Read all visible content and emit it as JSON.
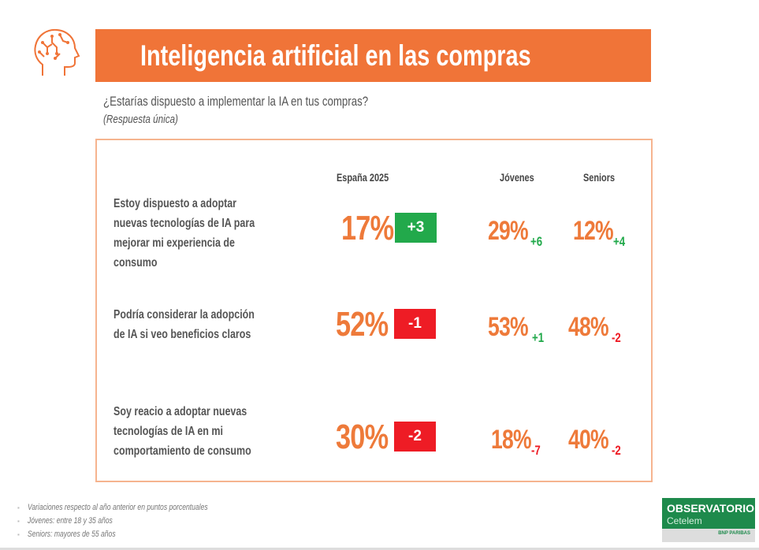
{
  "header": {
    "title": "Inteligencia artificial en las compras",
    "icon": "brain-head-icon"
  },
  "question": "¿Estarías dispuesto a implementar la IA en tus compras?",
  "question_note": "(Respuesta única)",
  "columns": {
    "spain": "España 2025",
    "young": "Jóvenes",
    "seniors": "Seniors"
  },
  "rows": [
    {
      "label": "Estoy dispuesto a adoptar nuevas tecnologías de IA para mejorar mi experiencia de consumo",
      "spain": "17%",
      "spain_delta": "+3",
      "young": "29%",
      "young_delta": "+6",
      "seniors": "12%",
      "seniors_delta": "+4"
    },
    {
      "label": "Podría considerar la adopción de IA si veo beneficios claros",
      "spain": "52%",
      "spain_delta": "-1",
      "young": "53%",
      "young_delta": "+1",
      "seniors": "48%",
      "seniors_delta": "-2"
    },
    {
      "label": "Soy reacio a adoptar nuevas tecnologías de IA en mi comportamiento de consumo",
      "spain": "30%",
      "spain_delta": "-2",
      "young": "18%",
      "young_delta": "-7",
      "seniors": "40%",
      "seniors_delta": "-2"
    }
  ],
  "notes": [
    "Variaciones respecto al año anterior en puntos porcentuales",
    "Jóvenes: entre 18 y 35 años",
    "Seniors: mayores de 55 años"
  ],
  "logo": {
    "line1": "OBSERVATORIO",
    "line2": "Cetelem",
    "sub": "BNP PARIBAS"
  },
  "colors": {
    "orange": "#F07438",
    "positive": "#22A94B",
    "negative": "#EE1C25"
  }
}
